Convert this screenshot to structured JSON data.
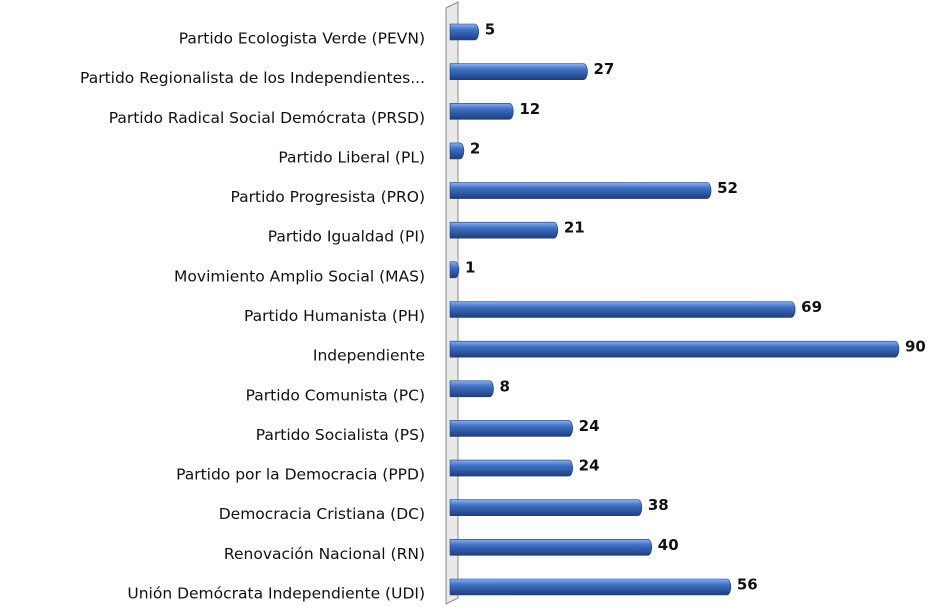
{
  "chart_data": {
    "type": "bar",
    "orientation": "horizontal",
    "categories": [
      "Partido Ecologista Verde (PEVN)",
      "Partido Regionalista de los Independientes...",
      "Partido Radical Social Demócrata (PRSD)",
      "Partido Liberal (PL)",
      "Partido Progresista (PRO)",
      "Partido Igualdad (PI)",
      "Movimiento Amplio Social (MAS)",
      "Partido Humanista (PH)",
      "Independiente",
      "Partido Comunista (PC)",
      "Partido Socialista (PS)",
      "Partido por la Democracia (PPD)",
      "Democracia Cristiana (DC)",
      "Renovación Nacional (RN)",
      "Unión Demócrata Independiente (UDI)"
    ],
    "values": [
      5,
      27,
      12,
      2,
      52,
      21,
      1,
      69,
      90,
      8,
      24,
      24,
      38,
      40,
      56
    ],
    "color": "#2f5fb0"
  }
}
